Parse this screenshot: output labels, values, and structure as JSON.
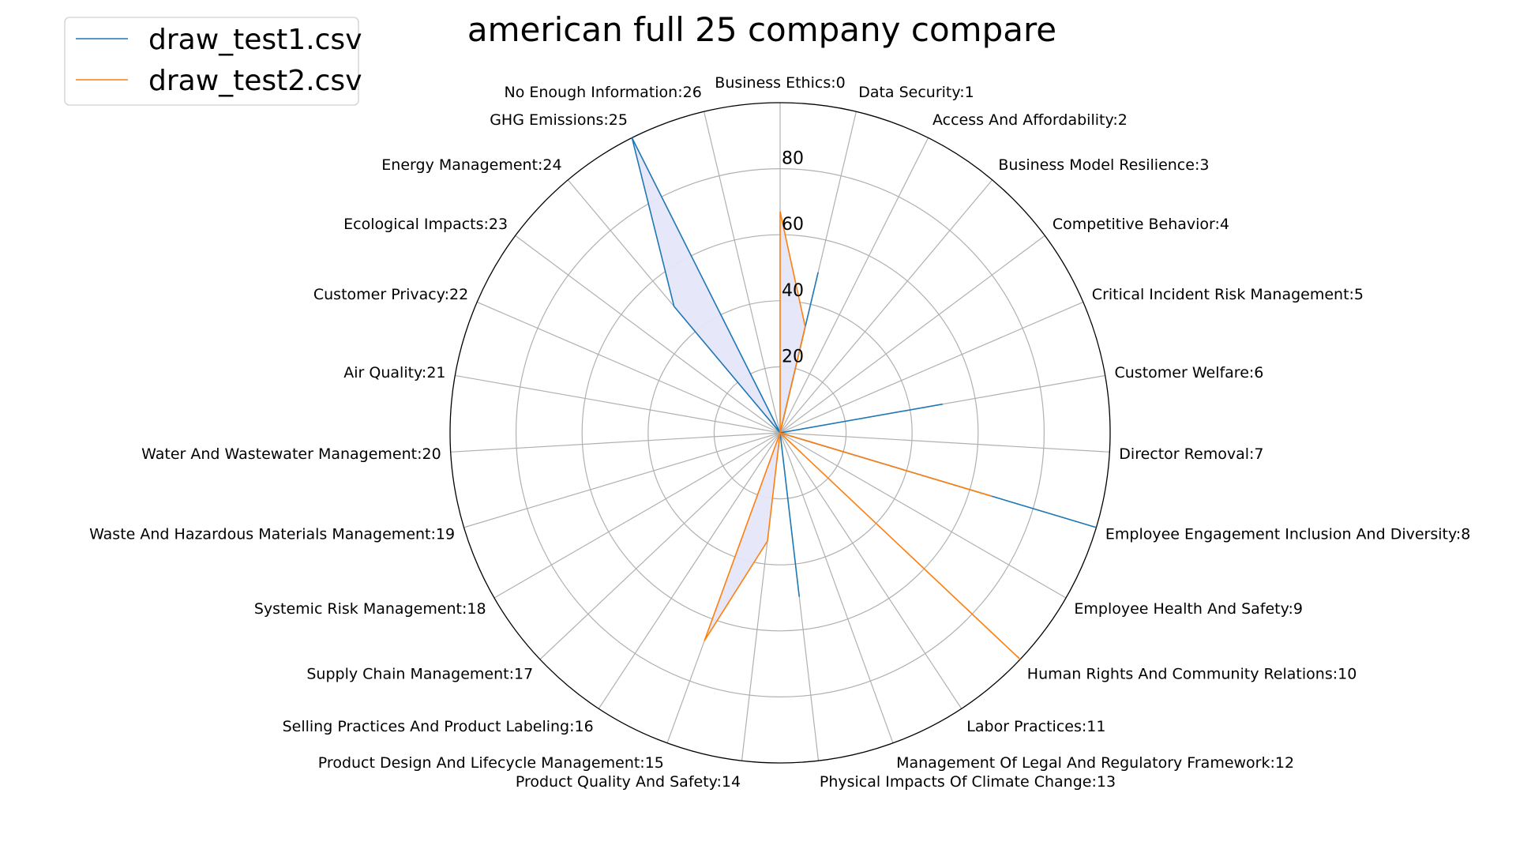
{
  "chart_data": {
    "type": "radar",
    "title": "american full 25 company compare",
    "categories": [
      "Business Ethics:0",
      "Data Security:1",
      "Access And Affordability:2",
      "Business Model Resilience:3",
      "Competitive Behavior:4",
      "Critical Incident Risk Management:5",
      "Customer Welfare:6",
      "Director Removal:7",
      "Employee Engagement Inclusion And Diversity:8",
      "Employee Health And Safety:9",
      "Human Rights And Community Relations:10",
      "Labor Practices:11",
      "Management Of Legal And Regulatory Framework:12",
      "Physical Impacts Of Climate Change:13",
      "Product Quality And Safety:14",
      "Product Design And Lifecycle Management:15",
      "Selling Practices And Product Labeling:16",
      "Supply Chain Management:17",
      "Systemic Risk Management:18",
      "Waste And Hazardous Materials Management:19",
      "Water And Wastewater Management:20",
      "Air Quality:21",
      "Customer Privacy:22",
      "Ecological Impacts:23",
      "Energy Management:24",
      "GHG Emissions:25",
      "No Enough Information:26"
    ],
    "r_ticks": [
      20,
      40,
      60,
      80
    ],
    "r_tick_labels": [
      "20",
      "40",
      "60",
      "80"
    ],
    "rlim": [
      0,
      100
    ],
    "grid": true,
    "legend_position": "top-left",
    "series": [
      {
        "name": "draw_test1.csv",
        "color": "#1f77b4",
        "fill": "#e6e6fa",
        "values": [
          0,
          50,
          0,
          0,
          0,
          0,
          50,
          0,
          100,
          0,
          0,
          0,
          0,
          50,
          0,
          0,
          0,
          0,
          0,
          0,
          0,
          0,
          0,
          0,
          50,
          100,
          0
        ]
      },
      {
        "name": "draw_test2.csv",
        "color": "#ff7f0e",
        "fill": "#e6e6fa",
        "values": [
          67,
          33,
          0,
          0,
          0,
          0,
          0,
          0,
          67,
          0,
          100,
          0,
          0,
          0,
          33,
          67,
          0,
          0,
          0,
          0,
          0,
          0,
          0,
          0,
          0,
          0,
          0
        ]
      }
    ]
  }
}
